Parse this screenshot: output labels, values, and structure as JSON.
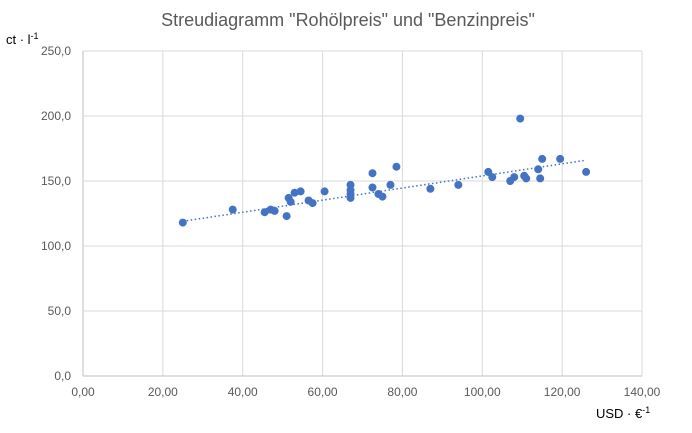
{
  "chart_data": {
    "type": "scatter",
    "title": "Streudiagramm \"Rohölpreis\" und \"Benzinpreis\"",
    "xlabel": "USD · €",
    "xlabel_sup": "-1",
    "ylabel": "ct · l",
    "ylabel_sup": "-1",
    "xlim": [
      0,
      140
    ],
    "ylim": [
      0,
      250
    ],
    "x_ticks": [
      "0,00",
      "20,00",
      "40,00",
      "60,00",
      "80,00",
      "100,00",
      "120,00",
      "140,00"
    ],
    "y_ticks": [
      "0,0",
      "50,0",
      "100,0",
      "150,0",
      "200,0",
      "250,0"
    ],
    "grid": true,
    "legend": "none",
    "trendline": {
      "type": "linear",
      "x": [
        25,
        126
      ],
      "y": [
        119,
        166
      ]
    },
    "colors": {
      "points": "#4472c4",
      "trendline": "#4472c4",
      "grid": "#d9d9d9"
    },
    "points": [
      {
        "x": 25,
        "y": 118
      },
      {
        "x": 37.5,
        "y": 128
      },
      {
        "x": 45.5,
        "y": 126
      },
      {
        "x": 47,
        "y": 128
      },
      {
        "x": 48,
        "y": 127
      },
      {
        "x": 51,
        "y": 123
      },
      {
        "x": 51.5,
        "y": 137
      },
      {
        "x": 52,
        "y": 134
      },
      {
        "x": 53,
        "y": 141
      },
      {
        "x": 54.5,
        "y": 142
      },
      {
        "x": 56.5,
        "y": 135
      },
      {
        "x": 57.5,
        "y": 133
      },
      {
        "x": 60.5,
        "y": 142
      },
      {
        "x": 67,
        "y": 147
      },
      {
        "x": 67,
        "y": 143
      },
      {
        "x": 67,
        "y": 140
      },
      {
        "x": 67,
        "y": 137
      },
      {
        "x": 72.5,
        "y": 156
      },
      {
        "x": 72.5,
        "y": 145
      },
      {
        "x": 74,
        "y": 140
      },
      {
        "x": 75,
        "y": 138
      },
      {
        "x": 77,
        "y": 147
      },
      {
        "x": 78.5,
        "y": 161
      },
      {
        "x": 87,
        "y": 144
      },
      {
        "x": 94,
        "y": 147
      },
      {
        "x": 101.5,
        "y": 157
      },
      {
        "x": 102.5,
        "y": 153
      },
      {
        "x": 107,
        "y": 150
      },
      {
        "x": 108,
        "y": 153
      },
      {
        "x": 109.5,
        "y": 198
      },
      {
        "x": 110.5,
        "y": 154
      },
      {
        "x": 111,
        "y": 152
      },
      {
        "x": 114,
        "y": 159
      },
      {
        "x": 114.5,
        "y": 152
      },
      {
        "x": 115,
        "y": 167
      },
      {
        "x": 119.5,
        "y": 167
      },
      {
        "x": 126,
        "y": 157
      }
    ]
  }
}
